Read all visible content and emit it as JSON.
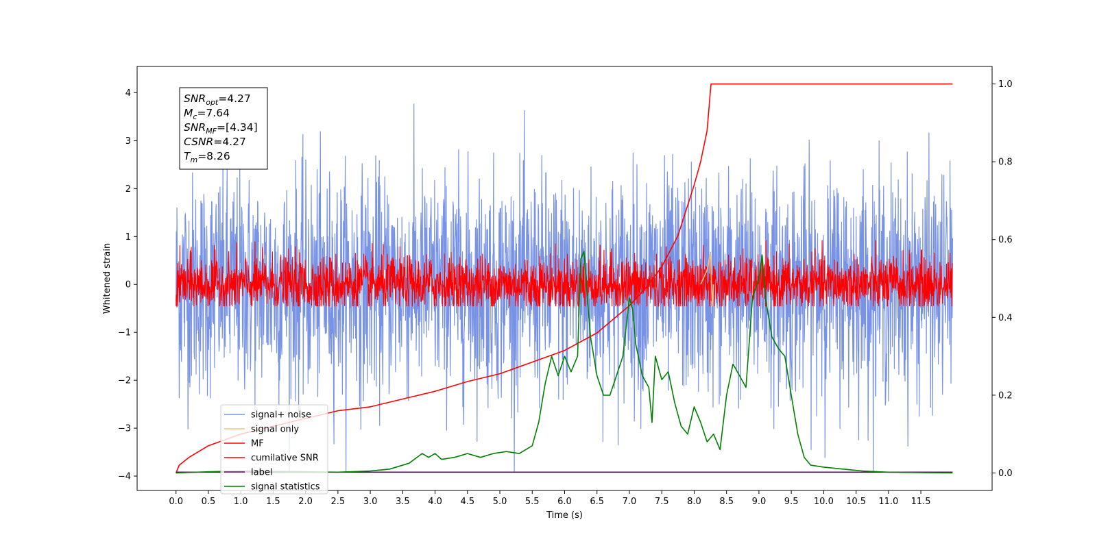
{
  "chart_data": {
    "type": "line",
    "xlabel": "Time (s)",
    "ylabel": "Whitened strain",
    "xlim": [
      -0.6,
      12.6
    ],
    "ylim": [
      -4.3,
      4.55
    ],
    "y2lim": [
      -0.045,
      1.045
    ],
    "x_ticks": [
      "0.0",
      "0.5",
      "1.0",
      "1.5",
      "2.0",
      "2.5",
      "3.0",
      "3.5",
      "4.0",
      "4.5",
      "5.0",
      "5.5",
      "6.0",
      "6.5",
      "7.0",
      "7.5",
      "8.0",
      "8.5",
      "9.0",
      "9.5",
      "10.0",
      "10.5",
      "11.0",
      "11.5"
    ],
    "y_ticks": [
      "4",
      "3",
      "2",
      "1",
      "0",
      "−1",
      "−2",
      "−3",
      "−4"
    ],
    "y2_ticks": [
      "1.0",
      "0.8",
      "0.6",
      "0.4",
      "0.2",
      "0.0"
    ],
    "annotation": {
      "lines": [
        {
          "base": "SNR",
          "sub": "opt",
          "value": "=4.27"
        },
        {
          "base": "M",
          "sub": "c",
          "value": "=7.64"
        },
        {
          "base": "SNR",
          "sub": "MF",
          "value": "=[4.34]"
        },
        {
          "base": "CSNR",
          "sub": "",
          "value": "=4.27"
        },
        {
          "base": "T",
          "sub": "m",
          "value": "=8.26"
        }
      ]
    },
    "legend": {
      "position": "lower-left",
      "entries": [
        {
          "label": "signal+ noise",
          "color": "#7893e6"
        },
        {
          "label": "signal only",
          "color": "#f5c07a"
        },
        {
          "label": "MF",
          "color": "#ff0000"
        },
        {
          "label": "cumilative SNR",
          "color": "#ff0000"
        },
        {
          "label": "label",
          "color": "#660066"
        },
        {
          "label": "signal statistics",
          "color": "#008000"
        }
      ]
    },
    "series": [
      {
        "name": "signal+ noise",
        "axis": "left",
        "style": "noise",
        "x_range": [
          0,
          11.99
        ],
        "center": 0.0,
        "spread": 1.15,
        "peak_max": 4.17,
        "peak_min": -3.9,
        "color": "#7893e6"
      },
      {
        "name": "MF",
        "axis": "left",
        "style": "noise",
        "x_range": [
          0,
          11.99
        ],
        "center": 0.0,
        "spread": 0.3,
        "peak_max": 0.92,
        "peak_min": -0.45,
        "color": "#ff0000"
      },
      {
        "name": "signal only",
        "axis": "left",
        "x": [
          8.1,
          8.2,
          8.25,
          8.28,
          8.3
        ],
        "y": [
          0.0,
          0.3,
          0.65,
          -0.45,
          0.0
        ],
        "color": "#f5c07a"
      },
      {
        "name": "cumilative SNR",
        "axis": "right",
        "x": [
          0.0,
          0.05,
          0.2,
          0.5,
          1.0,
          1.5,
          2.0,
          2.5,
          3.0,
          3.5,
          4.0,
          4.5,
          5.0,
          5.5,
          6.0,
          6.5,
          7.0,
          7.25,
          7.5,
          7.75,
          8.0,
          8.1,
          8.2,
          8.26,
          11.99
        ],
        "y": [
          0.0,
          0.02,
          0.04,
          0.07,
          0.1,
          0.12,
          0.14,
          0.16,
          0.17,
          0.19,
          0.21,
          0.235,
          0.255,
          0.285,
          0.315,
          0.36,
          0.43,
          0.475,
          0.53,
          0.61,
          0.74,
          0.8,
          0.88,
          1.0,
          1.0
        ],
        "color": "#ff0000"
      },
      {
        "name": "label",
        "axis": "right",
        "x": [
          0.0,
          11.99
        ],
        "y": [
          0.002,
          0.002
        ],
        "color": "#660066"
      },
      {
        "name": "signal statistics",
        "axis": "right",
        "x": [
          0.0,
          0.5,
          1.0,
          1.5,
          2.0,
          2.5,
          3.0,
          3.3,
          3.6,
          3.8,
          3.9,
          4.0,
          4.1,
          4.3,
          4.5,
          4.7,
          4.9,
          5.1,
          5.3,
          5.5,
          5.6,
          5.7,
          5.8,
          5.9,
          6.0,
          6.1,
          6.2,
          6.25,
          6.3,
          6.35,
          6.4,
          6.5,
          6.6,
          6.7,
          6.8,
          6.9,
          7.0,
          7.05,
          7.1,
          7.2,
          7.3,
          7.35,
          7.4,
          7.5,
          7.6,
          7.7,
          7.8,
          7.9,
          8.0,
          8.1,
          8.2,
          8.3,
          8.4,
          8.5,
          8.6,
          8.7,
          8.8,
          8.9,
          9.0,
          9.05,
          9.1,
          9.2,
          9.3,
          9.4,
          9.5,
          9.6,
          9.7,
          9.8,
          10.0,
          10.3,
          10.6,
          11.0,
          11.5,
          11.99
        ],
        "y": [
          0.0,
          0.003,
          0.005,
          0.004,
          0.003,
          0.002,
          0.005,
          0.01,
          0.025,
          0.05,
          0.04,
          0.05,
          0.035,
          0.04,
          0.05,
          0.04,
          0.05,
          0.055,
          0.05,
          0.07,
          0.13,
          0.23,
          0.3,
          0.25,
          0.3,
          0.26,
          0.3,
          0.55,
          0.57,
          0.45,
          0.35,
          0.25,
          0.2,
          0.2,
          0.25,
          0.3,
          0.45,
          0.42,
          0.33,
          0.25,
          0.22,
          0.13,
          0.3,
          0.24,
          0.26,
          0.18,
          0.12,
          0.1,
          0.17,
          0.13,
          0.08,
          0.1,
          0.06,
          0.2,
          0.28,
          0.25,
          0.22,
          0.45,
          0.5,
          0.56,
          0.45,
          0.35,
          0.32,
          0.3,
          0.2,
          0.1,
          0.04,
          0.02,
          0.015,
          0.01,
          0.005,
          0.002,
          0.001,
          0.0
        ],
        "color": "#008000"
      }
    ]
  }
}
